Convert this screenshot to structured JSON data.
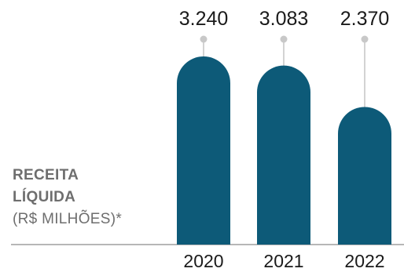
{
  "chart_data": {
    "type": "bar",
    "title_lines": [
      "RECEITA",
      "LÍQUIDA"
    ],
    "subtitle": "(R$ MILHÕES)*",
    "categories": [
      "2020",
      "2021",
      "2022"
    ],
    "values": [
      3240,
      3083,
      2370
    ],
    "value_labels": [
      "3.240",
      "3.083",
      "2.370"
    ],
    "ylim": [
      0,
      3240
    ],
    "grid": false,
    "colors": {
      "bar": "#0d5a78",
      "stem": "#c8c8c8",
      "text": "#1a1a1a",
      "axis": "#8c8c8c",
      "title": "#6e6e6e"
    }
  }
}
